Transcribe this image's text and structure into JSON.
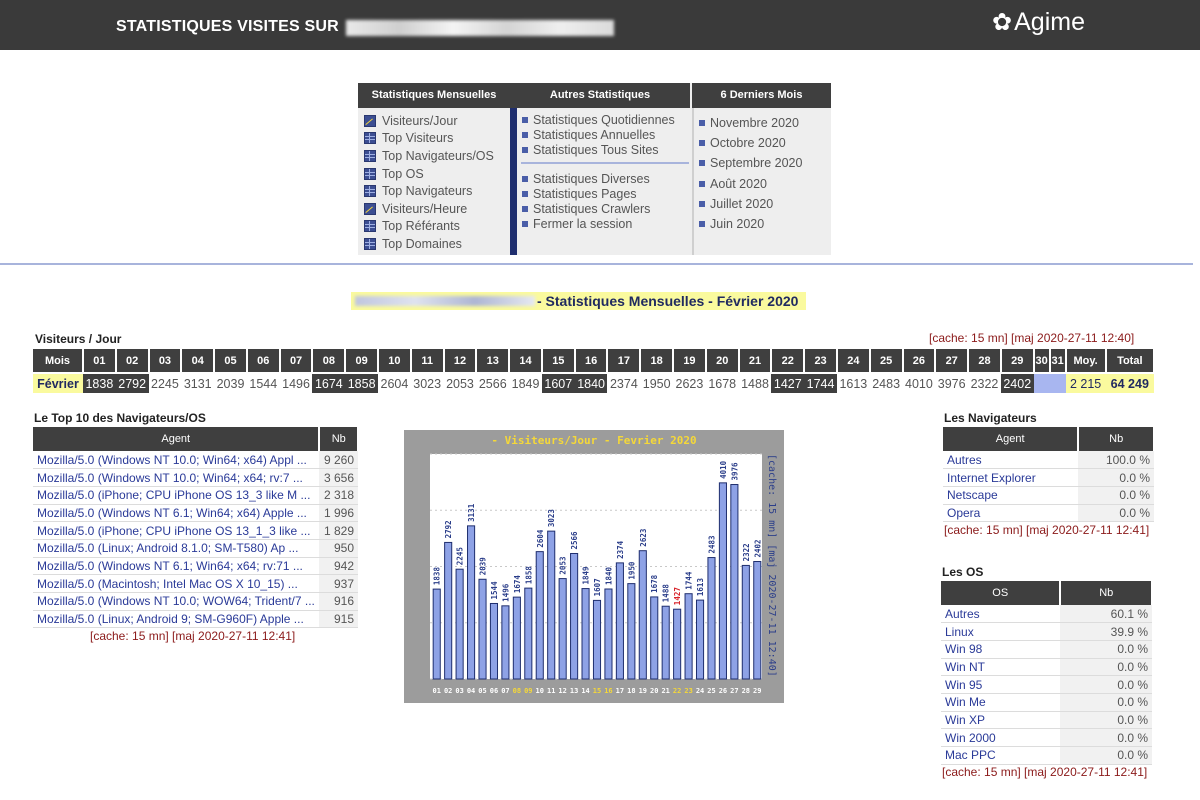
{
  "header": {
    "title": "STATISTIQUES VISITES SUR",
    "logo": "Agime",
    "logo_icon": "flower-icon"
  },
  "menu": {
    "col1": {
      "title": "Statistiques Mensuelles",
      "items": [
        {
          "label": "Visiteurs/Jour",
          "icon": "chart-icon"
        },
        {
          "label": "Top Visiteurs",
          "icon": "grid-icon"
        },
        {
          "label": "Top Navigateurs/OS",
          "icon": "grid-icon"
        },
        {
          "label": "Top OS",
          "icon": "grid-icon"
        },
        {
          "label": "Top Navigateurs",
          "icon": "grid-icon"
        },
        {
          "label": "Visiteurs/Heure",
          "icon": "chart-icon"
        },
        {
          "label": "Top Référants",
          "icon": "grid-icon"
        },
        {
          "label": "Top Domaines",
          "icon": "grid-icon"
        }
      ]
    },
    "col2": {
      "title": "Autres Statistiques",
      "group1": [
        "Statistiques Quotidiennes",
        "Statistiques Annuelles",
        "Statistiques Tous Sites"
      ],
      "group2": [
        "Statistiques Diverses",
        "Statistiques Pages",
        "Statistiques Crawlers",
        "Fermer la session"
      ]
    },
    "col3": {
      "title": "6 Derniers Mois",
      "items": [
        "Novembre 2020",
        "Octobre 2020",
        "Septembre 2020",
        "Août 2020",
        "Juillet 2020",
        "Juin 2020"
      ]
    }
  },
  "page_title": "- Statistiques Mensuelles - Février 2020",
  "visitors_day": {
    "label": "Visiteurs / Jour",
    "cache": "[cache: 15 mn] [maj 2020-27-11 12:40]",
    "head_mois": "Mois",
    "head_moy": "Moy.",
    "head_total": "Total",
    "days": [
      "01",
      "02",
      "03",
      "04",
      "05",
      "06",
      "07",
      "08",
      "09",
      "10",
      "11",
      "12",
      "13",
      "14",
      "15",
      "16",
      "17",
      "18",
      "19",
      "20",
      "21",
      "22",
      "23",
      "24",
      "25",
      "26",
      "27",
      "28",
      "29",
      "30",
      "31"
    ],
    "month": "Février",
    "values": [
      "1838",
      "2792",
      "2245",
      "3131",
      "2039",
      "1544",
      "1496",
      "1674",
      "1858",
      "2604",
      "3023",
      "2053",
      "2566",
      "1849",
      "1607",
      "1840",
      "2374",
      "1950",
      "2623",
      "1678",
      "1488",
      "1427",
      "1744",
      "1613",
      "2483",
      "4010",
      "3976",
      "2322",
      "2402",
      "",
      ""
    ],
    "highlight_days": [
      1,
      2,
      8,
      9,
      15,
      16,
      22,
      23,
      29
    ],
    "moy": "2 215",
    "total": "64 249"
  },
  "top10": {
    "label": "Le Top 10 des Navigateurs/OS",
    "head_agent": "Agent",
    "head_nb": "Nb",
    "rows": [
      {
        "agent": "Mozilla/5.0 (Windows NT 10.0; Win64; x64) Appl ...",
        "nb": "9 260"
      },
      {
        "agent": "Mozilla/5.0 (Windows NT 10.0; Win64; x64; rv:7 ...",
        "nb": "3 656"
      },
      {
        "agent": "Mozilla/5.0 (iPhone; CPU iPhone OS 13_3 like M ...",
        "nb": "2 318"
      },
      {
        "agent": "Mozilla/5.0 (Windows NT 6.1; Win64; x64) Apple ...",
        "nb": "1 996"
      },
      {
        "agent": "Mozilla/5.0 (iPhone; CPU iPhone OS 13_1_3 like ...",
        "nb": "1 829"
      },
      {
        "agent": "Mozilla/5.0 (Linux; Android 8.1.0; SM-T580) Ap ...",
        "nb": "950"
      },
      {
        "agent": "Mozilla/5.0 (Windows NT 6.1; Win64; x64; rv:71 ...",
        "nb": "942"
      },
      {
        "agent": "Mozilla/5.0 (Macintosh; Intel Mac OS X 10_15) ...",
        "nb": "937"
      },
      {
        "agent": "Mozilla/5.0 (Windows NT 10.0; WOW64; Trident/7 ...",
        "nb": "916"
      },
      {
        "agent": "Mozilla/5.0 (Linux; Android 9; SM-G960F) Apple ...",
        "nb": "915"
      }
    ],
    "cache": "[cache: 15 mn] [maj 2020-27-11 12:41]"
  },
  "chart_data": {
    "type": "bar",
    "title": "- Visiteurs/Jour - Fevrier 2020",
    "side_label": "[cache: 15 mn]  [maj 2020-27-11 12:40]",
    "categories": [
      "01",
      "02",
      "03",
      "04",
      "05",
      "06",
      "07",
      "08",
      "09",
      "10",
      "11",
      "12",
      "13",
      "14",
      "15",
      "16",
      "17",
      "18",
      "19",
      "20",
      "21",
      "22",
      "23",
      "24",
      "25",
      "26",
      "27",
      "28",
      "29"
    ],
    "values": [
      1838,
      2792,
      2245,
      3131,
      2039,
      1544,
      1496,
      1674,
      1858,
      2604,
      3023,
      2053,
      2566,
      1849,
      1607,
      1840,
      2374,
      1950,
      2623,
      1678,
      1488,
      1427,
      1744,
      1613,
      2483,
      4010,
      3976,
      2322,
      2402
    ],
    "yticks": [
      0,
      1150,
      2300,
      3450,
      4600
    ],
    "ylim": [
      0,
      4600
    ],
    "highlight_categories": [
      "08",
      "09",
      "15",
      "16",
      "22",
      "23"
    ],
    "min_value_category": "22",
    "bar_color": "#8ea2e6",
    "label_color": "#2b3e8a",
    "min_label_color": "#d8232a",
    "plot_bg": "#ffffff"
  },
  "browsers": {
    "label": "Les Navigateurs",
    "head_agent": "Agent",
    "head_nb": "Nb",
    "rows": [
      {
        "name": "Autres",
        "value": "100.0 %"
      },
      {
        "name": "Internet Explorer",
        "value": "0.0 %"
      },
      {
        "name": "Netscape",
        "value": "0.0 %"
      },
      {
        "name": "Opera",
        "value": "0.0 %"
      }
    ],
    "cache": "[cache: 15 mn] [maj 2020-27-11 12:41]"
  },
  "os": {
    "label": "Les OS",
    "head_os": "OS",
    "head_nb": "Nb",
    "rows": [
      {
        "name": "Autres",
        "value": "60.1 %"
      },
      {
        "name": "Linux",
        "value": "39.9 %"
      },
      {
        "name": "Win 98",
        "value": "0.0 %"
      },
      {
        "name": "Win NT",
        "value": "0.0 %"
      },
      {
        "name": "Win 95",
        "value": "0.0 %"
      },
      {
        "name": "Win Me",
        "value": "0.0 %"
      },
      {
        "name": "Win XP",
        "value": "0.0 %"
      },
      {
        "name": "Win 2000",
        "value": "0.0 %"
      },
      {
        "name": "Mac PPC",
        "value": "0.0 %"
      }
    ],
    "cache": "[cache: 15 mn] [maj 2020-27-11 12:41]"
  }
}
